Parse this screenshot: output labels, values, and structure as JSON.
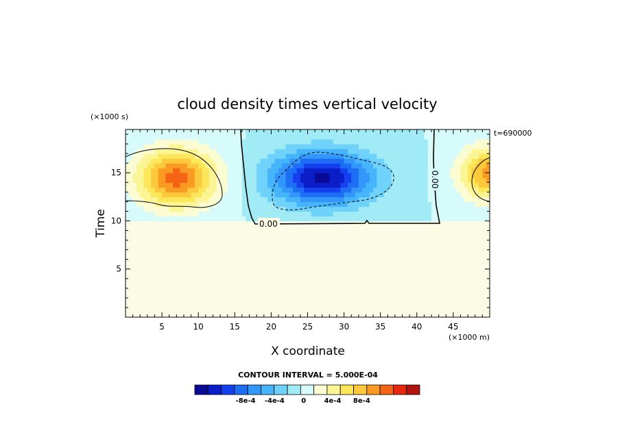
{
  "chart_data": {
    "type": "heatmap",
    "title": "cloud density times vertical velocity",
    "xlabel": "X coordinate",
    "ylabel": "Time",
    "x_unit_label": "(×1000 m)",
    "y_unit_label": "(×1000 s)",
    "annotation": "t=690000",
    "xlim": [
      0,
      50
    ],
    "ylim": [
      0,
      19.5
    ],
    "x_ticks": [
      5,
      10,
      15,
      20,
      25,
      30,
      35,
      40,
      45
    ],
    "y_ticks": [
      5,
      10,
      15
    ],
    "grid": false,
    "contour_interval_label": "CONTOUR INTERVAL = 5.000E-04",
    "zero_contour_labels": [
      "0.00",
      "0.00"
    ],
    "colorbar": {
      "levels": [
        -0.0015,
        -0.0014,
        -0.0012,
        -0.001,
        -0.0008,
        -0.0006,
        -0.0004,
        -0.0002,
        0,
        0.0002,
        0.0004,
        0.0006,
        0.0008,
        0.001,
        0.0012,
        0.0014,
        0.0016
      ],
      "tick_labels": [
        "-8e-4",
        "-4e-4",
        "0",
        "4e-4",
        "8e-4"
      ],
      "tick_values": [
        -0.0008,
        -0.0004,
        0,
        0.0004,
        0.0008
      ],
      "colors": [
        "#0a0a96",
        "#0c1ec8",
        "#1440f0",
        "#1e6ef5",
        "#3296fa",
        "#46b4fa",
        "#6ed2fa",
        "#a0ebf5",
        "#d7fafa",
        "#fcfcd2",
        "#fcf596",
        "#fce65a",
        "#fcc83c",
        "#fa9a23",
        "#f56414",
        "#e6280f",
        "#b4140f"
      ]
    },
    "features": [
      {
        "kind": "positive-max",
        "x_center": 7,
        "y_center": 14.5,
        "x_halfwidth": 8,
        "y_halfwidth": 4.5,
        "peak": 0.0013
      },
      {
        "kind": "negative-max",
        "x_center": 27,
        "y_center": 14.5,
        "x_halfwidth": 10,
        "y_halfwidth": 4,
        "peak": -0.00145
      },
      {
        "kind": "positive-max",
        "x_center": 50,
        "y_center": 15,
        "x_halfwidth": 6,
        "y_halfwidth": 4,
        "peak": 0.0011
      }
    ]
  }
}
